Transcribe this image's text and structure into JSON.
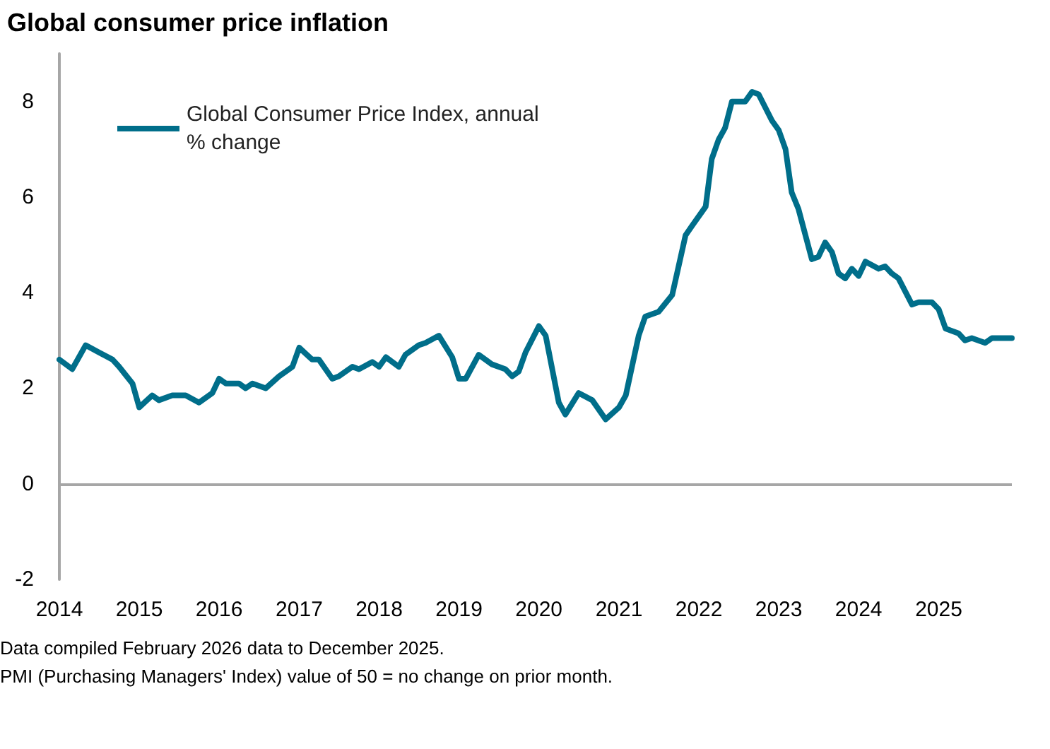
{
  "chart_data": {
    "type": "line",
    "title": "Global consumer price inflation",
    "annotations": [
      "Data compiled February 2026 data to December 2025.",
      "PMI (Purchasing Managers' Index) value of 50 = no change on prior month."
    ],
    "x": [
      "2014-01",
      "2014-03",
      "2014-05",
      "2014-07",
      "2014-09",
      "2014-10",
      "2014-12",
      "2015-01",
      "2015-03",
      "2015-04",
      "2015-06",
      "2015-08",
      "2015-10",
      "2015-12",
      "2016-01",
      "2016-02",
      "2016-04",
      "2016-05",
      "2016-06",
      "2016-08",
      "2016-10",
      "2016-11",
      "2016-12",
      "2017-01",
      "2017-03",
      "2017-04",
      "2017-06",
      "2017-07",
      "2017-09",
      "2017-10",
      "2017-12",
      "2018-01",
      "2018-02",
      "2018-04",
      "2018-05",
      "2018-07",
      "2018-08",
      "2018-10",
      "2018-12",
      "2019-01",
      "2019-02",
      "2019-04",
      "2019-06",
      "2019-08",
      "2019-09",
      "2019-10",
      "2019-11",
      "2020-01",
      "2020-02",
      "2020-04",
      "2020-05",
      "2020-07",
      "2020-09",
      "2020-11",
      "2021-01",
      "2021-02",
      "2021-04",
      "2021-05",
      "2021-07",
      "2021-09",
      "2021-11",
      "2021-12",
      "2022-02",
      "2022-03",
      "2022-04",
      "2022-05",
      "2022-06",
      "2022-08",
      "2022-09",
      "2022-10",
      "2022-12",
      "2023-01",
      "2023-02",
      "2023-03",
      "2023-04",
      "2023-06",
      "2023-07",
      "2023-08",
      "2023-09",
      "2023-10",
      "2023-11",
      "2023-12",
      "2024-01",
      "2024-02",
      "2024-04",
      "2024-05",
      "2024-06",
      "2024-07",
      "2024-09",
      "2024-10",
      "2024-12",
      "2025-01",
      "2025-02",
      "2025-04",
      "2025-05",
      "2025-06",
      "2025-08",
      "2025-09",
      "2025-12"
    ],
    "series": [
      {
        "name": "Global Consumer Price Index, annual % change",
        "color": "#006e8a",
        "values": [
          2.6,
          2.4,
          2.9,
          2.75,
          2.6,
          2.45,
          2.1,
          1.6,
          1.85,
          1.75,
          1.85,
          1.85,
          1.7,
          1.9,
          2.2,
          2.1,
          2.1,
          2.0,
          2.1,
          2.0,
          2.25,
          2.35,
          2.45,
          2.85,
          2.6,
          2.6,
          2.2,
          2.25,
          2.45,
          2.4,
          2.55,
          2.45,
          2.65,
          2.45,
          2.7,
          2.9,
          2.95,
          3.1,
          2.65,
          2.2,
          2.2,
          2.7,
          2.5,
          2.4,
          2.25,
          2.35,
          2.75,
          3.3,
          3.1,
          1.7,
          1.45,
          1.9,
          1.75,
          1.35,
          1.6,
          1.85,
          3.1,
          3.5,
          3.6,
          3.95,
          5.2,
          5.4,
          5.8,
          6.8,
          7.2,
          7.45,
          8.0,
          8.0,
          8.2,
          8.15,
          7.6,
          7.4,
          7.0,
          6.1,
          5.75,
          4.7,
          4.75,
          5.05,
          4.85,
          4.4,
          4.3,
          4.5,
          4.35,
          4.65,
          4.5,
          4.55,
          4.4,
          4.3,
          3.75,
          3.8,
          3.8,
          3.65,
          3.25,
          3.15,
          3.0,
          3.05,
          2.95,
          3.05,
          3.05
        ]
      }
    ],
    "xlim": [
      "2014-01",
      "2025-12"
    ],
    "xticks": [
      "2014",
      "2015",
      "2016",
      "2017",
      "2018",
      "2019",
      "2020",
      "2021",
      "2022",
      "2023",
      "2024",
      "2025"
    ],
    "ylim": [
      -2,
      9
    ],
    "yticks": [
      -2,
      0,
      2,
      4,
      6,
      8
    ],
    "ref_lines": [
      {
        "axis": "y",
        "value": 0,
        "color": "#a6a6a6"
      }
    ],
    "legend": "top left",
    "grid": false,
    "marker": "none",
    "line_style": "solid"
  }
}
